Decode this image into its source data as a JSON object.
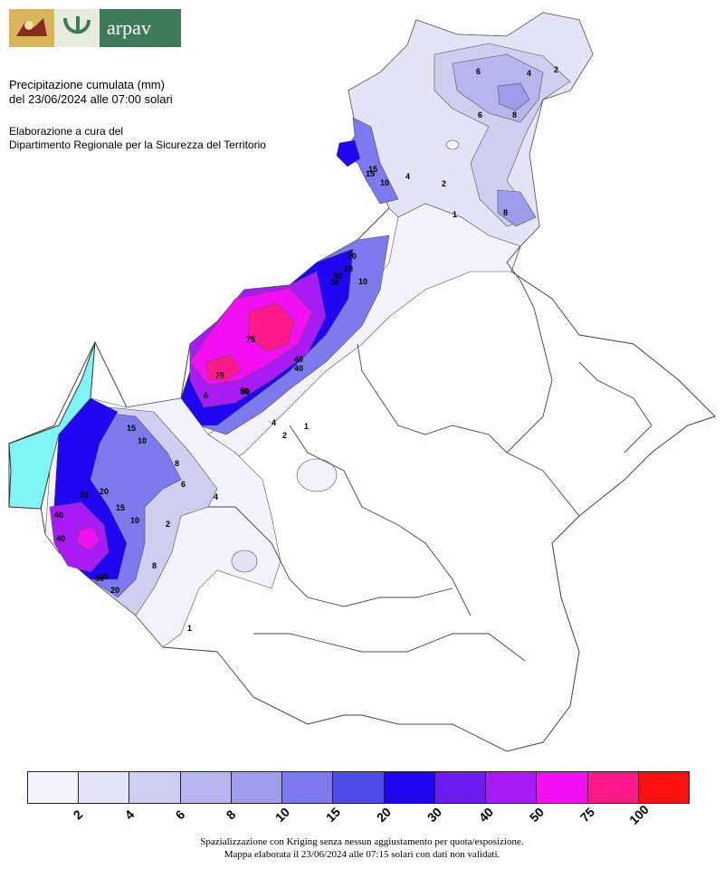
{
  "header": {
    "brand": "arpav",
    "title_line1": "Precipitazione cumulata (mm)",
    "title_line2": "del 23/06/2024 alle 07:00 solari",
    "credit_line1": "Elaborazione a cura del",
    "credit_line2": "Dipartimento Regionale per la Sicurezza del Territorio"
  },
  "legend": {
    "colors": [
      "#f4f2fb",
      "#e5e4f6",
      "#cfcdf0",
      "#b7b5ec",
      "#9d9bea",
      "#7c7aed",
      "#4f4ce9",
      "#1f05f2",
      "#6a1cf0",
      "#a81bf4",
      "#f20ff2",
      "#ff1a8a",
      "#ff1010"
    ],
    "tick_labels": [
      "2",
      "4",
      "6",
      "8",
      "10",
      "15",
      "20",
      "30",
      "40",
      "50",
      "75",
      "100"
    ]
  },
  "footer": {
    "line1": "Spazializzazione con Kriging senza nessun aggiustamento per quota/esposizione.",
    "line2": "Mappa elaborata il 23/06/2024 alle 07:15 solari con dati non validati."
  },
  "contour_labels": [
    "2",
    "4",
    "6",
    "8",
    "8",
    "10",
    "15",
    "20",
    "30",
    "40",
    "50",
    "75",
    "1",
    "2",
    "4",
    "6",
    "10",
    "15",
    "20",
    "30",
    "40",
    "50",
    "1",
    "2",
    "4",
    "6",
    "8",
    "10",
    "15",
    "20",
    "30",
    "40",
    "50",
    "75",
    "1",
    "2",
    "4",
    "6",
    "8",
    "10",
    "15",
    "20",
    "30",
    "40"
  ]
}
